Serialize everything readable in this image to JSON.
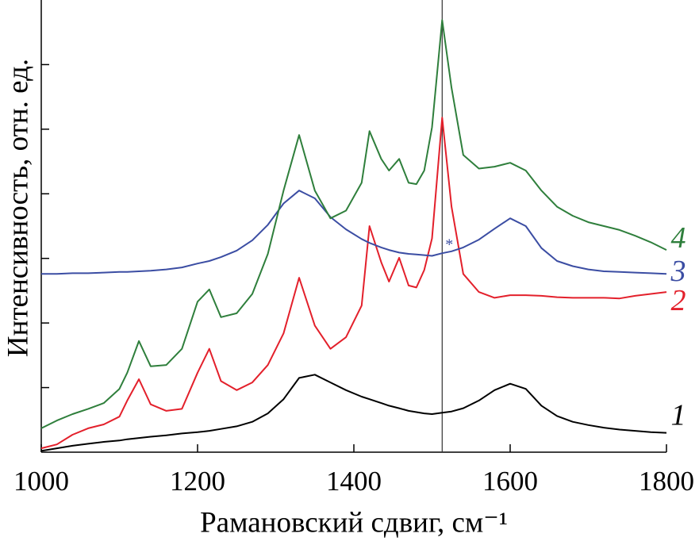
{
  "chart_data": {
    "type": "line",
    "xlabel": "Рамановский сдвиг, см⁻¹",
    "ylabel": "Интенсивность, отн. ед.",
    "x": [
      1000,
      1020,
      1040,
      1060,
      1080,
      1100,
      1110,
      1125,
      1140,
      1160,
      1180,
      1200,
      1215,
      1230,
      1250,
      1270,
      1290,
      1310,
      1330,
      1350,
      1370,
      1390,
      1410,
      1420,
      1435,
      1445,
      1458,
      1470,
      1480,
      1490,
      1500,
      1513,
      1525,
      1540,
      1560,
      1580,
      1600,
      1620,
      1640,
      1660,
      1680,
      1700,
      1720,
      1740,
      1760,
      1780,
      1800
    ],
    "series": [
      {
        "name": "1",
        "color": "#000000",
        "values": [
          0.02,
          0.06,
          0.1,
          0.13,
          0.16,
          0.18,
          0.2,
          0.22,
          0.24,
          0.26,
          0.29,
          0.31,
          0.33,
          0.36,
          0.4,
          0.47,
          0.6,
          0.82,
          1.15,
          1.2,
          1.08,
          0.96,
          0.86,
          0.82,
          0.76,
          0.72,
          0.68,
          0.64,
          0.62,
          0.6,
          0.59,
          0.61,
          0.63,
          0.68,
          0.8,
          0.96,
          1.06,
          0.98,
          0.72,
          0.56,
          0.47,
          0.42,
          0.38,
          0.35,
          0.33,
          0.31,
          0.3
        ]
      },
      {
        "name": "2",
        "color": "#e3202b",
        "values": [
          0.06,
          0.12,
          0.27,
          0.37,
          0.43,
          0.55,
          0.8,
          1.13,
          0.74,
          0.64,
          0.67,
          1.23,
          1.6,
          1.1,
          0.96,
          1.08,
          1.35,
          1.84,
          2.7,
          1.96,
          1.6,
          1.78,
          2.27,
          3.5,
          2.94,
          2.64,
          3.01,
          2.58,
          2.55,
          2.82,
          3.31,
          5.18,
          3.8,
          2.76,
          2.48,
          2.39,
          2.43,
          2.43,
          2.42,
          2.4,
          2.39,
          2.39,
          2.39,
          2.38,
          2.42,
          2.45,
          2.48
        ]
      },
      {
        "name": "3",
        "color": "#3b4da3",
        "values": [
          2.76,
          2.76,
          2.77,
          2.77,
          2.78,
          2.79,
          2.79,
          2.8,
          2.81,
          2.83,
          2.86,
          2.92,
          2.96,
          3.02,
          3.12,
          3.28,
          3.52,
          3.85,
          4.05,
          3.93,
          3.64,
          3.45,
          3.3,
          3.24,
          3.17,
          3.13,
          3.09,
          3.07,
          3.06,
          3.05,
          3.04,
          3.08,
          3.11,
          3.17,
          3.29,
          3.46,
          3.62,
          3.5,
          3.16,
          2.96,
          2.88,
          2.83,
          2.8,
          2.79,
          2.78,
          2.77,
          2.76
        ]
      },
      {
        "name": "4",
        "color": "#2f7f3c",
        "values": [
          0.37,
          0.49,
          0.59,
          0.67,
          0.76,
          0.98,
          1.23,
          1.72,
          1.33,
          1.35,
          1.6,
          2.33,
          2.52,
          2.09,
          2.15,
          2.45,
          3.07,
          4.05,
          4.91,
          4.05,
          3.62,
          3.74,
          4.17,
          4.97,
          4.54,
          4.36,
          4.54,
          4.17,
          4.15,
          4.36,
          5.03,
          6.69,
          5.64,
          4.6,
          4.39,
          4.42,
          4.48,
          4.36,
          4.05,
          3.8,
          3.66,
          3.56,
          3.5,
          3.44,
          3.35,
          3.25,
          3.13
        ]
      }
    ],
    "xlim": [
      1000,
      1800
    ],
    "xticks": [
      1000,
      1200,
      1400,
      1600,
      1800
    ],
    "ylim": [
      0,
      7
    ],
    "yticks": [
      1,
      2,
      3,
      4,
      5,
      6
    ],
    "reference_line_x": 1513,
    "annotation": {
      "text": "*",
      "color": "#3b4da3"
    }
  }
}
